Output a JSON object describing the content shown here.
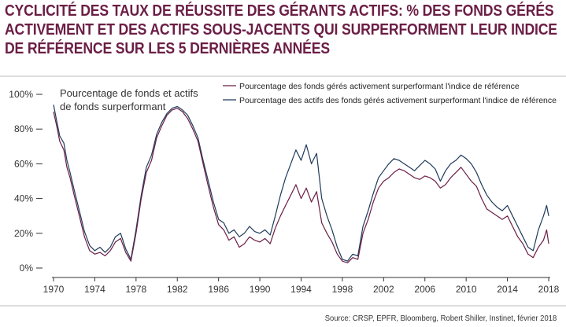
{
  "title_lines": [
    "CYCLICITÉ DES TAUX DE RÉUSSITE DES GÉRANTS ACTIFS: % DES FONDS GÉRÉS",
    "ACTIVEMENT ET DES ACTIFS SOUS-JACENTS QUI SURPERFORMENT LEUR INDICE",
    "DE RÉFÉRENCE SUR LES 5 DERNIÈRES ANNÉES"
  ],
  "source": "Source: CRSP, EPFR, Bloomberg, Robert Shiller, Instinet, février 2018",
  "colors": {
    "title": "#6b1e45",
    "funds": "#6b1e45",
    "assets": "#1f3a5a"
  },
  "chart_data": {
    "type": "line",
    "ylabel_lines": [
      "Pourcentage de fonds et actifs",
      "de fonds surperformant"
    ],
    "xlim": [
      1970,
      2018
    ],
    "ylim": [
      0,
      100
    ],
    "x_ticks": [
      1970,
      1974,
      1978,
      1982,
      1986,
      1990,
      1994,
      1998,
      2002,
      2006,
      2010,
      2014,
      2018
    ],
    "y_ticks": [
      0,
      20,
      40,
      60,
      80,
      100
    ],
    "y_tick_labels": [
      "0%",
      "20%",
      "40%",
      "60%",
      "80%",
      "100%"
    ],
    "grid": false,
    "legend_position": "top-right",
    "series": [
      {
        "name": "Pourcentage des fonds gérés activement surperformant l'indice de référence",
        "points": [
          [
            1970.0,
            90
          ],
          [
            1970.3,
            82
          ],
          [
            1970.6,
            73
          ],
          [
            1971.0,
            68
          ],
          [
            1971.3,
            58
          ],
          [
            1971.6,
            52
          ],
          [
            1972.0,
            42
          ],
          [
            1972.5,
            30
          ],
          [
            1973.0,
            18
          ],
          [
            1973.5,
            10
          ],
          [
            1974.0,
            8
          ],
          [
            1974.5,
            9
          ],
          [
            1975.0,
            7
          ],
          [
            1975.5,
            10
          ],
          [
            1976.0,
            15
          ],
          [
            1976.5,
            17
          ],
          [
            1977.0,
            9
          ],
          [
            1977.5,
            4
          ],
          [
            1978.0,
            20
          ],
          [
            1978.5,
            40
          ],
          [
            1979.0,
            55
          ],
          [
            1979.5,
            62
          ],
          [
            1980.0,
            75
          ],
          [
            1980.5,
            82
          ],
          [
            1981.0,
            88
          ],
          [
            1981.5,
            91
          ],
          [
            1982.0,
            92
          ],
          [
            1982.5,
            90
          ],
          [
            1983.0,
            86
          ],
          [
            1983.5,
            80
          ],
          [
            1984.0,
            73
          ],
          [
            1984.5,
            60
          ],
          [
            1985.0,
            47
          ],
          [
            1985.5,
            35
          ],
          [
            1986.0,
            25
          ],
          [
            1986.5,
            22
          ],
          [
            1987.0,
            16
          ],
          [
            1987.5,
            18
          ],
          [
            1988.0,
            12
          ],
          [
            1988.5,
            14
          ],
          [
            1989.0,
            18
          ],
          [
            1989.5,
            16
          ],
          [
            1990.0,
            15
          ],
          [
            1990.5,
            17
          ],
          [
            1991.0,
            14
          ],
          [
            1991.5,
            23
          ],
          [
            1992.0,
            30
          ],
          [
            1992.5,
            36
          ],
          [
            1993.0,
            42
          ],
          [
            1993.5,
            48
          ],
          [
            1994.0,
            40
          ],
          [
            1994.5,
            46
          ],
          [
            1995.0,
            38
          ],
          [
            1995.5,
            44
          ],
          [
            1996.0,
            26
          ],
          [
            1996.5,
            20
          ],
          [
            1997.0,
            15
          ],
          [
            1997.5,
            8
          ],
          [
            1998.0,
            4
          ],
          [
            1998.5,
            3
          ],
          [
            1999.0,
            6
          ],
          [
            1999.5,
            5
          ],
          [
            2000.0,
            20
          ],
          [
            2000.5,
            28
          ],
          [
            2001.0,
            38
          ],
          [
            2001.5,
            46
          ],
          [
            2002.0,
            50
          ],
          [
            2002.5,
            52
          ],
          [
            2003.0,
            55
          ],
          [
            2003.5,
            57
          ],
          [
            2004.0,
            56
          ],
          [
            2004.5,
            54
          ],
          [
            2005.0,
            52
          ],
          [
            2005.5,
            51
          ],
          [
            2006.0,
            53
          ],
          [
            2006.5,
            52
          ],
          [
            2007.0,
            50
          ],
          [
            2007.5,
            46
          ],
          [
            2008.0,
            48
          ],
          [
            2008.5,
            52
          ],
          [
            2009.0,
            55
          ],
          [
            2009.5,
            58
          ],
          [
            2010.0,
            54
          ],
          [
            2010.5,
            50
          ],
          [
            2011.0,
            47
          ],
          [
            2011.5,
            40
          ],
          [
            2012.0,
            34
          ],
          [
            2012.5,
            32
          ],
          [
            2013.0,
            30
          ],
          [
            2013.5,
            28
          ],
          [
            2014.0,
            30
          ],
          [
            2014.5,
            24
          ],
          [
            2015.0,
            18
          ],
          [
            2015.5,
            14
          ],
          [
            2016.0,
            8
          ],
          [
            2016.5,
            6
          ],
          [
            2017.0,
            12
          ],
          [
            2017.5,
            16
          ],
          [
            2017.8,
            22
          ],
          [
            2018.0,
            14
          ]
        ]
      },
      {
        "name": "Pourcentage des actifs des fonds gérés activement surperformant l'indice de référence",
        "points": [
          [
            1970.0,
            94
          ],
          [
            1970.3,
            85
          ],
          [
            1970.6,
            76
          ],
          [
            1971.0,
            72
          ],
          [
            1971.3,
            62
          ],
          [
            1971.6,
            55
          ],
          [
            1972.0,
            45
          ],
          [
            1972.5,
            33
          ],
          [
            1973.0,
            21
          ],
          [
            1973.5,
            13
          ],
          [
            1974.0,
            10
          ],
          [
            1974.5,
            12
          ],
          [
            1975.0,
            9
          ],
          [
            1975.5,
            12
          ],
          [
            1976.0,
            18
          ],
          [
            1976.5,
            20
          ],
          [
            1977.0,
            11
          ],
          [
            1977.5,
            5
          ],
          [
            1978.0,
            22
          ],
          [
            1978.5,
            42
          ],
          [
            1979.0,
            58
          ],
          [
            1979.5,
            65
          ],
          [
            1980.0,
            77
          ],
          [
            1980.5,
            84
          ],
          [
            1981.0,
            89
          ],
          [
            1981.5,
            92
          ],
          [
            1982.0,
            93
          ],
          [
            1982.5,
            91
          ],
          [
            1983.0,
            88
          ],
          [
            1983.5,
            82
          ],
          [
            1984.0,
            75
          ],
          [
            1984.5,
            62
          ],
          [
            1985.0,
            50
          ],
          [
            1985.5,
            38
          ],
          [
            1986.0,
            28
          ],
          [
            1986.5,
            26
          ],
          [
            1987.0,
            20
          ],
          [
            1987.5,
            22
          ],
          [
            1988.0,
            18
          ],
          [
            1988.5,
            20
          ],
          [
            1989.0,
            24
          ],
          [
            1989.5,
            21
          ],
          [
            1990.0,
            20
          ],
          [
            1990.5,
            22
          ],
          [
            1991.0,
            19
          ],
          [
            1991.5,
            30
          ],
          [
            1992.0,
            42
          ],
          [
            1992.5,
            52
          ],
          [
            1993.0,
            60
          ],
          [
            1993.5,
            68
          ],
          [
            1994.0,
            62
          ],
          [
            1994.5,
            71
          ],
          [
            1995.0,
            60
          ],
          [
            1995.5,
            66
          ],
          [
            1996.0,
            40
          ],
          [
            1996.5,
            30
          ],
          [
            1997.0,
            22
          ],
          [
            1997.5,
            12
          ],
          [
            1998.0,
            5
          ],
          [
            1998.5,
            4
          ],
          [
            1999.0,
            8
          ],
          [
            1999.5,
            7
          ],
          [
            2000.0,
            24
          ],
          [
            2000.5,
            33
          ],
          [
            2001.0,
            43
          ],
          [
            2001.5,
            52
          ],
          [
            2002.0,
            56
          ],
          [
            2002.5,
            60
          ],
          [
            2003.0,
            63
          ],
          [
            2003.5,
            62
          ],
          [
            2004.0,
            60
          ],
          [
            2004.5,
            58
          ],
          [
            2005.0,
            56
          ],
          [
            2005.5,
            59
          ],
          [
            2006.0,
            62
          ],
          [
            2006.5,
            60
          ],
          [
            2007.0,
            57
          ],
          [
            2007.5,
            50
          ],
          [
            2008.0,
            56
          ],
          [
            2008.5,
            60
          ],
          [
            2009.0,
            62
          ],
          [
            2009.5,
            65
          ],
          [
            2010.0,
            63
          ],
          [
            2010.5,
            60
          ],
          [
            2011.0,
            55
          ],
          [
            2011.5,
            48
          ],
          [
            2012.0,
            42
          ],
          [
            2012.5,
            38
          ],
          [
            2013.0,
            35
          ],
          [
            2013.5,
            33
          ],
          [
            2014.0,
            36
          ],
          [
            2014.5,
            30
          ],
          [
            2015.0,
            24
          ],
          [
            2015.5,
            18
          ],
          [
            2016.0,
            12
          ],
          [
            2016.5,
            10
          ],
          [
            2017.0,
            22
          ],
          [
            2017.5,
            30
          ],
          [
            2017.8,
            36
          ],
          [
            2018.0,
            30
          ]
        ]
      }
    ]
  }
}
